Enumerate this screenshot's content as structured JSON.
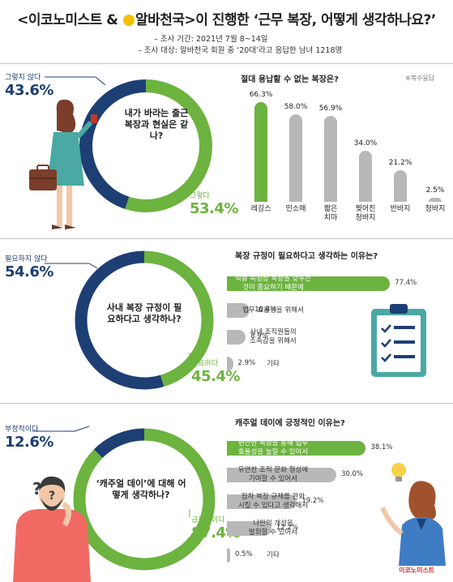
{
  "header": {
    "brand1": "이코노미스트",
    "amp": " & ",
    "brand2": "알바천국",
    "title_rest": ">이 진행한 ‘근무 복장, 어떻게 생각하나요?’",
    "meta1": "– 조사 기간: 2021년 7월 8~14일",
    "meta2": "– 조사 대상: 알바천국 회원 중 ‘20대’라고 응답한 남녀 1218명"
  },
  "section1": {
    "question": "내가 바라는 출근 복장과 현실은 같나?",
    "no_label": "그렇지 않다",
    "no_pct": "43.6%",
    "yes_label": "그렇다",
    "yes_pct": "53.4%",
    "chart_title": "절대 용납할 수 없는 복장은?",
    "note": "※복수응답",
    "value_labels": [
      "66.3%",
      "58.0%",
      "56.9%",
      "34.0%",
      "21.2%",
      "2.5%"
    ],
    "cat_labels": [
      "레깅스",
      "민소매",
      "짧은\n치마",
      "찢어진\n청바지",
      "반바지",
      "청바지"
    ]
  },
  "section2": {
    "question": "사내 복장 규정이 필요하다고 생각하나?",
    "no_label": "필요하지 않다",
    "no_pct": "54.6%",
    "yes_label": "필요하다",
    "yes_pct": "45.4%",
    "chart_title": "복장 규정이 필요하다고 생각하는 이유는?",
    "cat_labels": [
      "직종 특성상 복장을 갖추는\n것이 중요하기 때문에",
      "업무 효율성을 위해서",
      "사내 조직원들의\n소속감을 위해서",
      "기타"
    ],
    "value_labels": [
      "77.4%",
      "10.8%",
      "8.9%",
      "2.9%"
    ]
  },
  "section3": {
    "question": "‘캐주얼 데이’에 대해 어떻게 생각하나?",
    "no_label": "부정적이다",
    "no_pct": "12.6%",
    "yes_label": "긍정적이다",
    "yes_pct": "87.4%",
    "chart_title": "캐주얼 데이에 긍정적인 이유는?",
    "cat_labels": [
      "편안한 복장을 통해 업무\n효율성을 높일 수 있어서",
      "유연한 조직 문화 형성에\n기여할 수 있어서",
      "점차 복장 규제를 완화\n시킬 수 있다고 생각해서",
      "나만의 개성을\n발휘할 수 있어서",
      "기타"
    ],
    "value_labels": [
      "38.1%",
      "30.0%",
      "19.2%",
      "12.2%",
      "0.5%"
    ]
  },
  "footer": {
    "brand": "이코노미스트"
  },
  "colors": {
    "navy": "#1d3f73",
    "green": "#6cb33f",
    "gray": "#b8b8b8",
    "teal": "#4aa9a3"
  },
  "chart_data": [
    {
      "type": "pie",
      "title": "내가 바라는 출근 복장과 현실은 같나?",
      "categories": [
        "그렇지 않다",
        "그렇다"
      ],
      "values": [
        43.6,
        53.4
      ]
    },
    {
      "type": "bar",
      "title": "절대 용납할 수 없는 복장은?",
      "categories": [
        "레깅스",
        "민소매",
        "짧은 치마",
        "찢어진 청바지",
        "반바지",
        "청바지"
      ],
      "values": [
        66.3,
        58.0,
        56.9,
        34.0,
        21.2,
        2.5
      ],
      "ylim": [
        0,
        70
      ],
      "highlight_index": 0
    },
    {
      "type": "pie",
      "title": "사내 복장 규정이 필요하다고 생각하나?",
      "categories": [
        "필요하지 않다",
        "필요하다"
      ],
      "values": [
        54.6,
        45.4
      ]
    },
    {
      "type": "bar",
      "orientation": "horizontal",
      "title": "복장 규정이 필요하다고 생각하는 이유는?",
      "categories": [
        "직종 특성상 복장을 갖추는 것이 중요하기 때문에",
        "업무 효율성을 위해서",
        "사내 조직원들의 소속감을 위해서",
        "기타"
      ],
      "values": [
        77.4,
        10.8,
        8.9,
        2.9
      ],
      "xlim": [
        0,
        100
      ],
      "highlight_index": 0
    },
    {
      "type": "pie",
      "title": "‘캐주얼 데이’에 대해 어떻게 생각하나?",
      "categories": [
        "부정적이다",
        "긍정적이다"
      ],
      "values": [
        12.6,
        87.4
      ]
    },
    {
      "type": "bar",
      "orientation": "horizontal",
      "title": "캐주얼 데이에 긍정적인 이유는?",
      "categories": [
        "편안한 복장을 통해 업무 효율성을 높일 수 있어서",
        "유연한 조직 문화 형성에 기여할 수 있어서",
        "점차 복장 규제를 완화 시킬 수 있다고 생각해서",
        "나만의 개성을 발휘할 수 있어서",
        "기타"
      ],
      "values": [
        38.1,
        30.0,
        19.2,
        12.2,
        0.5
      ],
      "xlim": [
        0,
        40
      ],
      "highlight_index": 0
    }
  ]
}
